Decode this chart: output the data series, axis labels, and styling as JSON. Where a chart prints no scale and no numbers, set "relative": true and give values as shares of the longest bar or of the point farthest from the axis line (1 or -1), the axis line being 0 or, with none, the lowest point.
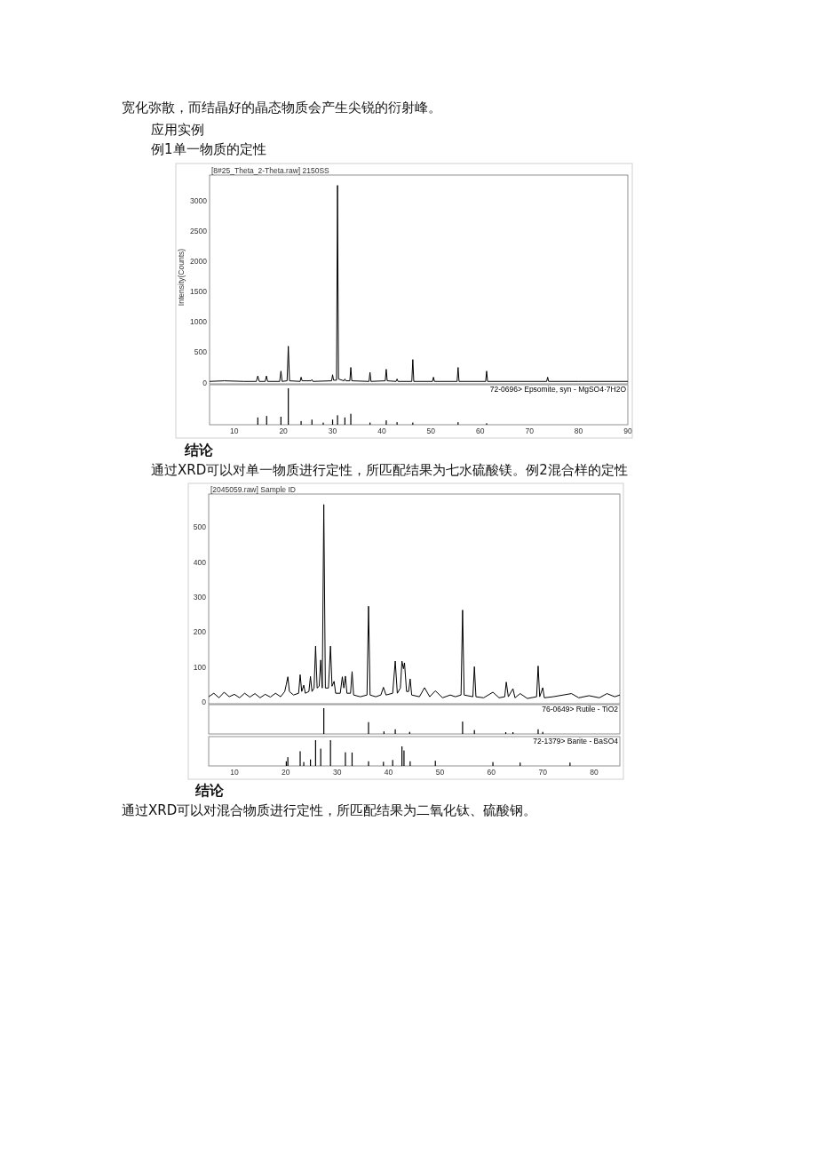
{
  "chart_data": [
    {
      "type": "other",
      "annotations": [
        "宽化弥散，而结晶好的晶态物质会产生尖锐的衍射峰。",
        "应用实例",
        "例1单一物质的定性"
      ]
    },
    {
      "type": "line",
      "title": "[8#25_Theta_2-Theta.raw] 2150SS",
      "ylabel": "Intensity(Counts)",
      "color": "#000000",
      "xlim": [
        5,
        90
      ],
      "ylim": [
        -20,
        3420
      ],
      "yticks": [
        0,
        500,
        1000,
        1500,
        2000,
        2500,
        3000
      ],
      "tick_labels": "y",
      "x": [
        5,
        8,
        12,
        14.5,
        14.8,
        15.1,
        16.3,
        16.55,
        16.8,
        19.25,
        19.5,
        19.75,
        20.75,
        21.0,
        21.25,
        23.4,
        23.6,
        23.8,
        25.6,
        25.8,
        26.0,
        29.8,
        30.0,
        30.2,
        30.8,
        31.0,
        31.2,
        32.3,
        32.5,
        32.7,
        33.5,
        33.7,
        33.9,
        37.4,
        37.6,
        37.8,
        40.7,
        40.9,
        41.1,
        42.9,
        43.1,
        43.3,
        46.1,
        46.3,
        46.5,
        50.3,
        50.5,
        50.7,
        55.3,
        55.5,
        55.7,
        61.1,
        61.3,
        61.5,
        73.5,
        73.7,
        73.9,
        80,
        90
      ],
      "values": [
        20,
        30,
        20,
        20,
        110,
        20,
        20,
        110,
        20,
        20,
        190,
        20,
        30,
        600,
        30,
        20,
        90,
        30,
        30,
        50,
        20,
        30,
        130,
        40,
        40,
        3250,
        60,
        30,
        60,
        30,
        30,
        250,
        30,
        20,
        170,
        20,
        30,
        220,
        30,
        20,
        60,
        20,
        20,
        380,
        20,
        20,
        90,
        20,
        20,
        250,
        20,
        20,
        190,
        20,
        20,
        90,
        20,
        20,
        20
      ]
    },
    {
      "type": "bar",
      "relative": true,
      "xlim": [
        5,
        90
      ],
      "xticks": [
        10,
        20,
        30,
        40,
        50,
        60,
        70,
        80,
        90
      ],
      "tick_labels": "x",
      "x": [
        14.8,
        16.6,
        19.5,
        21.0,
        23.6,
        25.8,
        28.1,
        30.0,
        31.0,
        32.5,
        33.7,
        37.6,
        40.9,
        43.1,
        46.3,
        55.5,
        61.3
      ],
      "series": [
        {
          "name": "72-0696> Epsomite, syn - MgSO4·7H2O",
          "color": "#000000",
          "values": [
            0.2,
            0.24,
            0.22,
            1,
            0.1,
            0.14,
            0.06,
            0.14,
            0.26,
            0.2,
            0.3,
            0.06,
            0.12,
            0.07,
            0.06,
            0.07,
            0.04
          ]
        }
      ]
    },
    {
      "type": "other",
      "annotations": [
        "结论",
        "通过XRD可以对单一物质进行定性，所匹配结果为七水硫酸镁。例2混合样的定性"
      ]
    },
    {
      "type": "line",
      "title": "[2045059.raw] Sample ID",
      "color": "#000000",
      "xlim": [
        5,
        85
      ],
      "ylim": [
        -5,
        595
      ],
      "yticks": [
        0,
        100,
        200,
        300,
        400,
        500
      ],
      "tick_labels": "y",
      "x": [
        5,
        6,
        7,
        8,
        9,
        10,
        11,
        12,
        13,
        14,
        15,
        16,
        17,
        18,
        19,
        19.8,
        20.1,
        20.4,
        20.7,
        21.5,
        22.5,
        22.8,
        23.1,
        23.5,
        23.8,
        24.5,
        24.8,
        25.1,
        25.5,
        25.8,
        26.1,
        26.5,
        26.8,
        27.1,
        27.4,
        27.7,
        28.3,
        28.7,
        29.0,
        29.4,
        29.7,
        30.6,
        31.0,
        31.3,
        31.6,
        31.9,
        32.6,
        32.9,
        33.2,
        34.5,
        35.8,
        36.1,
        36.4,
        37.5,
        38.5,
        39.0,
        39.5,
        40.8,
        41.3,
        41.7,
        42.3,
        42.6,
        42.9,
        43.1,
        43.5,
        43.9,
        44.2,
        44.5,
        46,
        47.0,
        48,
        49.1,
        50.5,
        52,
        53,
        54.1,
        54.4,
        54.7,
        56.4,
        56.7,
        57.0,
        58.5,
        60.3,
        61.5,
        62.6,
        62.9,
        63.3,
        64.2,
        64.6,
        65.6,
        67,
        68.8,
        69.1,
        69.4,
        70.0,
        70.3,
        72,
        75.6,
        77,
        79,
        81,
        82.5,
        84,
        85
      ],
      "values": [
        15,
        25,
        12,
        28,
        15,
        22,
        12,
        25,
        14,
        24,
        12,
        22,
        14,
        25,
        15,
        30,
        50,
        72,
        30,
        20,
        25,
        78,
        30,
        48,
        25,
        30,
        73,
        30,
        40,
        160,
        40,
        45,
        120,
        40,
        565,
        40,
        40,
        160,
        45,
        59,
        25,
        25,
        72,
        40,
        74,
        25,
        25,
        87,
        20,
        15,
        20,
        274,
        20,
        15,
        20,
        42,
        20,
        25,
        117,
        25,
        40,
        117,
        95,
        112,
        30,
        30,
        66,
        20,
        15,
        41,
        15,
        32,
        12,
        20,
        15,
        20,
        263,
        20,
        15,
        101,
        15,
        12,
        28,
        12,
        15,
        57,
        15,
        38,
        12,
        24,
        10,
        15,
        103,
        15,
        41,
        12,
        15,
        24,
        12,
        18,
        12,
        24,
        15,
        20
      ]
    },
    {
      "type": "bar",
      "relative": true,
      "xlim": [
        5,
        85
      ],
      "tick_labels": false,
      "x": [
        27.4,
        36.1,
        39.1,
        41.3,
        44.1,
        54.4,
        56.7,
        62.8,
        64.2,
        69.1,
        70.0
      ],
      "series": [
        {
          "name": "76-0649> Rutile - TiO2",
          "color": "#000000",
          "values": [
            1,
            0.46,
            0.1,
            0.18,
            0.08,
            0.48,
            0.15,
            0.07,
            0.07,
            0.18,
            0.08
          ]
        }
      ]
    },
    {
      "type": "bar",
      "relative": true,
      "xlim": [
        5,
        85
      ],
      "xticks": [
        10,
        20,
        30,
        40,
        50,
        60,
        70,
        80
      ],
      "tick_labels": "x",
      "x": [
        20.1,
        20.4,
        22.8,
        23.5,
        24.8,
        25.8,
        26.8,
        28.7,
        31.6,
        32.9,
        36.1,
        39.0,
        40.8,
        42.6,
        43.0,
        44.2,
        49.1,
        60.3,
        65.6,
        75.3
      ],
      "series": [
        {
          "name": "72-1379> Barite - BaSO4",
          "color": "#000000",
          "values": [
            0.18,
            0.34,
            0.57,
            0.15,
            0.25,
            1,
            0.67,
            1,
            0.53,
            0.52,
            0.18,
            0.16,
            0.23,
            0.76,
            0.6,
            0.18,
            0.2,
            0.15,
            0.13,
            0.13
          ]
        }
      ]
    },
    {
      "type": "other",
      "annotations": [
        "结论",
        "通过XRD可以对混合物质进行定性，所匹配结果为二氧化钛、硫酸钢。"
      ]
    }
  ]
}
